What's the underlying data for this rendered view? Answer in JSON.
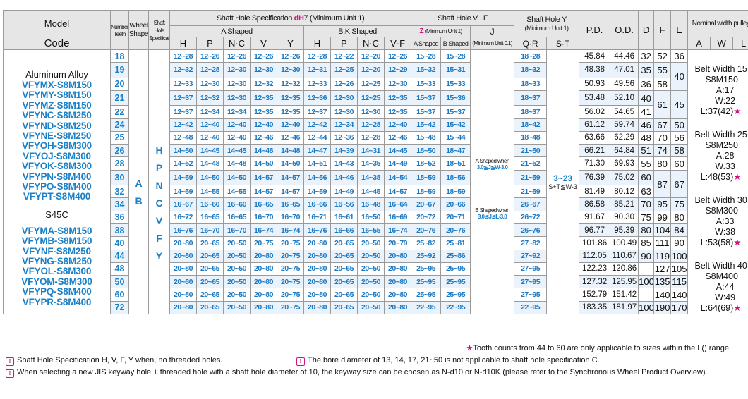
{
  "header": {
    "model": "Model",
    "code": "Code",
    "number_teeth": "Number Teeth",
    "wheel_shape": "Wheel Shape",
    "shaft_hole_spec": "Shaft Hole Specification",
    "shaft_hole_spec_dh7_prefix": "Shaft Hole Specification ",
    "shaft_hole_spec_dh7_mid": "dH",
    "shaft_hole_spec_dh7_suffix": "7 (Minimum Unit 1)",
    "a_shaped": "A Shaped",
    "bk_shaped": "B.K Shaped",
    "shaft_hole_vf": "Shaft Hole V . F",
    "z_label": "Z",
    "z_sub": " (Minimum Unit 1)",
    "j_label": "J",
    "j_sub": "(Minimum Unit 0.1)",
    "a_shaped_small": "A Shaped",
    "b_shaped_small": "B Shaped",
    "shaft_hole_y": "Shaft Hole Y",
    "shaft_hole_y_sub": "(Minimum Unit 1)",
    "qr": "Q·R",
    "st": "S·T",
    "pd": "P.D.",
    "od": "O.D.",
    "d": "D",
    "f": "F",
    "e": "E",
    "nominal": "Nominal width pulley",
    "a_sub": [
      "H",
      "P",
      "N·C",
      "V",
      "Y"
    ],
    "bk_sub": [
      "H",
      "P",
      "N·C",
      "V·F"
    ],
    "nw_sub": [
      "A",
      "W",
      "L"
    ]
  },
  "model_column": {
    "aluminum": "Aluminum Alloy",
    "aluminum_codes": [
      "VFYMX-S8M150",
      "VFYMY-S8M150",
      "VFYMZ-S8M150",
      "VFYNC-S8M250",
      "VFYND-S8M250",
      "VFYNE-S8M250",
      "VFYOH-S8M300",
      "VFYOJ-S8M300",
      "VFYOK-S8M300",
      "VFYPN-S8M400",
      "VFYPO-S8M400",
      "VFYPT-S8M400"
    ],
    "steel": "S45C",
    "steel_codes": [
      "VFYMA-S8M150",
      "VFYMB-S8M150",
      "VFYNF-S8M250",
      "VFYNG-S8M250",
      "VFYOL-S8M300",
      "VFYOM-S8M300",
      "VFYPQ-S8M400",
      "VFYPR-S8M400"
    ]
  },
  "wheel_shape": [
    "A",
    "B"
  ],
  "shaft_spec_letters": [
    "H",
    "P",
    "N",
    "C",
    "V",
    "F",
    "Y"
  ],
  "z_notes": {
    "a_line1": "A Shaped when",
    "a_line2": "3.0≦J≦W-3.0",
    "b_line1": "B Shaped when",
    "b_line2": "3.0≦J≦L-3.0"
  },
  "st_range": "3~23",
  "st_formula": "S+T≦W-3",
  "rows": [
    {
      "t": "18",
      "a": [
        "12~28",
        "12~26",
        "12~26",
        "12~26",
        "12~26"
      ],
      "bk": [
        "12~28",
        "12~22",
        "12~20",
        "12~26"
      ],
      "za": "15~28",
      "zb": "15~28",
      "qr": "18~28",
      "pd": "45.84",
      "od": "44.46",
      "d": "32",
      "f": "52",
      "e": "36"
    },
    {
      "t": "19",
      "a": [
        "12~32",
        "12~28",
        "12~30",
        "12~30",
        "12~30"
      ],
      "bk": [
        "12~31",
        "12~25",
        "12~20",
        "12~29"
      ],
      "za": "15~32",
      "zb": "15~31",
      "qr": "18~32",
      "pd": "48.38",
      "od": "47.01",
      "d": "35",
      "f": "55",
      "e": "40"
    },
    {
      "t": "20",
      "a": [
        "12~33",
        "12~30",
        "12~30",
        "12~32",
        "12~32"
      ],
      "bk": [
        "12~33",
        "12~26",
        "12~25",
        "12~30"
      ],
      "za": "15~33",
      "zb": "15~33",
      "qr": "18~33",
      "pd": "50.93",
      "od": "49.56",
      "d": "36",
      "f": "58",
      "e": ""
    },
    {
      "t": "21",
      "a": [
        "12~37",
        "12~32",
        "12~30",
        "12~35",
        "12~35"
      ],
      "bk": [
        "12~36",
        "12~30",
        "12~25",
        "12~35"
      ],
      "za": "15~37",
      "zb": "15~36",
      "qr": "18~37",
      "pd": "53.48",
      "od": "52.10",
      "d": "40",
      "f": "61",
      "e": "45"
    },
    {
      "t": "22",
      "a": [
        "12~37",
        "12~34",
        "12~34",
        "12~35",
        "12~35"
      ],
      "bk": [
        "12~37",
        "12~30",
        "12~30",
        "12~35"
      ],
      "za": "15~37",
      "zb": "15~37",
      "qr": "18~37",
      "pd": "56.02",
      "od": "54.65",
      "d": "41",
      "f": "",
      "e": ""
    },
    {
      "t": "24",
      "a": [
        "12~42",
        "12~40",
        "12~40",
        "12~40",
        "12~40"
      ],
      "bk": [
        "12~42",
        "12~34",
        "12~28",
        "12~40"
      ],
      "za": "15~42",
      "zb": "15~42",
      "qr": "18~42",
      "pd": "61.12",
      "od": "59.74",
      "d": "46",
      "f": "67",
      "e": "50"
    },
    {
      "t": "25",
      "a": [
        "12~48",
        "12~40",
        "12~40",
        "12~46",
        "12~46"
      ],
      "bk": [
        "12~44",
        "12~36",
        "12~28",
        "12~46"
      ],
      "za": "15~48",
      "zb": "15~44",
      "qr": "18~48",
      "pd": "63.66",
      "od": "62.29",
      "d": "48",
      "f": "70",
      "e": "56"
    },
    {
      "t": "26",
      "a": [
        "14~50",
        "14~45",
        "14~45",
        "14~48",
        "14~48"
      ],
      "bk": [
        "14~47",
        "14~39",
        "14~31",
        "14~45"
      ],
      "za": "18~50",
      "zb": "18~47",
      "qr": "21~50",
      "pd": "66.21",
      "od": "64.84",
      "d": "51",
      "f": "74",
      "e": "58"
    },
    {
      "t": "28",
      "a": [
        "14~52",
        "14~48",
        "14~48",
        "14~50",
        "14~50"
      ],
      "bk": [
        "14~51",
        "14~43",
        "14~35",
        "14~49"
      ],
      "za": "18~52",
      "zb": "18~51",
      "qr": "21~52",
      "pd": "71.30",
      "od": "69.93",
      "d": "55",
      "f": "80",
      "e": "60"
    },
    {
      "t": "30",
      "a": [
        "14~59",
        "14~50",
        "14~50",
        "14~57",
        "14~57"
      ],
      "bk": [
        "14~56",
        "14~46",
        "14~38",
        "14~54"
      ],
      "za": "18~59",
      "zb": "18~56",
      "qr": "21~59",
      "pd": "76.39",
      "od": "75.02",
      "d": "60",
      "f": "87",
      "e": "67"
    },
    {
      "t": "32",
      "a": [
        "14~59",
        "14~55",
        "14~55",
        "14~57",
        "14~57"
      ],
      "bk": [
        "14~59",
        "14~49",
        "14~45",
        "14~57"
      ],
      "za": "18~59",
      "zb": "18~59",
      "qr": "21~59",
      "pd": "81.49",
      "od": "80.12",
      "d": "63",
      "f": "",
      "e": ""
    },
    {
      "t": "34",
      "a": [
        "16~67",
        "16~60",
        "16~60",
        "16~65",
        "16~65"
      ],
      "bk": [
        "16~66",
        "16~56",
        "16~48",
        "16~64"
      ],
      "za": "20~67",
      "zb": "20~66",
      "qr": "26~67",
      "pd": "86.58",
      "od": "85.21",
      "d": "70",
      "f": "95",
      "e": "75"
    },
    {
      "t": "36",
      "a": [
        "16~72",
        "16~65",
        "16~65",
        "16~70",
        "16~70"
      ],
      "bk": [
        "16~71",
        "16~61",
        "16~50",
        "16~69"
      ],
      "za": "20~72",
      "zb": "20~71",
      "qr": "26~72",
      "pd": "91.67",
      "od": "90.30",
      "d": "75",
      "f": "99",
      "e": "80"
    },
    {
      "t": "38",
      "a": [
        "16~76",
        "16~70",
        "16~70",
        "16~74",
        "16~74"
      ],
      "bk": [
        "16~76",
        "16~66",
        "16~55",
        "16~74"
      ],
      "za": "20~76",
      "zb": "20~76",
      "qr": "26~76",
      "pd": "96.77",
      "od": "95.39",
      "d": "80",
      "f": "104",
      "e": "84"
    },
    {
      "t": "40",
      "a": [
        "20~80",
        "20~65",
        "20~50",
        "20~75",
        "20~75"
      ],
      "bk": [
        "20~80",
        "20~65",
        "20~50",
        "20~79"
      ],
      "za": "25~82",
      "zb": "25~81",
      "qr": "27~82",
      "pd": "101.86",
      "od": "100.49",
      "d": "85",
      "f": "111",
      "e": "90"
    },
    {
      "t": "44",
      "a": [
        "20~80",
        "20~65",
        "20~50",
        "20~80",
        "20~75"
      ],
      "bk": [
        "20~80",
        "20~65",
        "20~50",
        "20~80"
      ],
      "za": "25~92",
      "zb": "25~86",
      "qr": "27~92",
      "pd": "112.05",
      "od": "110.67",
      "d": "90",
      "f": "119",
      "e": "100"
    },
    {
      "t": "48",
      "a": [
        "20~80",
        "20~65",
        "20~50",
        "20~80",
        "20~75"
      ],
      "bk": [
        "20~80",
        "20~65",
        "20~50",
        "20~80"
      ],
      "za": "25~95",
      "zb": "25~95",
      "qr": "27~95",
      "pd": "122.23",
      "od": "120.86",
      "d": "",
      "f": "127",
      "e": "105"
    },
    {
      "t": "50",
      "a": [
        "20~80",
        "20~65",
        "20~50",
        "20~80",
        "20~75"
      ],
      "bk": [
        "20~80",
        "20~65",
        "20~50",
        "20~80"
      ],
      "za": "25~95",
      "zb": "25~95",
      "qr": "27~95",
      "pd": "127.32",
      "od": "125.95",
      "d": "100",
      "f": "135",
      "e": "115"
    },
    {
      "t": "60",
      "a": [
        "20~80",
        "20~65",
        "20~50",
        "20~80",
        "20~75"
      ],
      "bk": [
        "20~80",
        "20~65",
        "20~50",
        "20~80"
      ],
      "za": "25~95",
      "zb": "25~95",
      "qr": "27~95",
      "pd": "152.79",
      "od": "151.42",
      "d": "",
      "f": "140",
      "e": "140"
    },
    {
      "t": "72",
      "a": [
        "20~80",
        "20~65",
        "20~50",
        "20~80",
        "20~75"
      ],
      "bk": [
        "20~80",
        "20~65",
        "20~50",
        "20~80"
      ],
      "za": "22~95",
      "zb": "22~95",
      "qr": "22~95",
      "pd": "183.35",
      "od": "181.97",
      "d": "100",
      "f": "190",
      "e": "170"
    }
  ],
  "nominal_width": [
    {
      "title": "Belt Width 15",
      "code": "S8M150",
      "a": "A:17",
      "w": "W:22",
      "l": "L:37(42)"
    },
    {
      "title": "Belt Width 25",
      "code": "S8M250",
      "a": "A:28",
      "w": "W.33",
      "l": "L:48(53)"
    },
    {
      "title": "Belt Width 30",
      "code": "S8M300",
      "a": "A:33",
      "w": "W:38",
      "l": "L:53(58)"
    },
    {
      "title": "Belt Width 40",
      "code": "S8M400",
      "a": "A:44",
      "w": "W:49",
      "l": "L:64(69)"
    }
  ],
  "star": "★",
  "notes": {
    "star_note": "Tooth counts from 44 to 60 are only applicable to sizes within the L() range.",
    "note1": "Shaft Hole Specification H, V, F, Y when, no threaded holes.",
    "note2": "The bore diameter of 13, 14, 17, 21~50 is not applicable to shaft hole specification C.",
    "note3": "When selecting a new JIS keyway hole + threaded hole with a shaft hole diameter of 10, the keyway size can be chosen as N-d10 or N-d10K (please refer to the Synchronous Wheel Product Overview).",
    "icon_glyph": "!"
  },
  "colors": {
    "blue": "#1b80c6",
    "magenta": "#d0137f",
    "header_bg": "#e6e6e6",
    "alt_row": "#eaf3fb"
  }
}
